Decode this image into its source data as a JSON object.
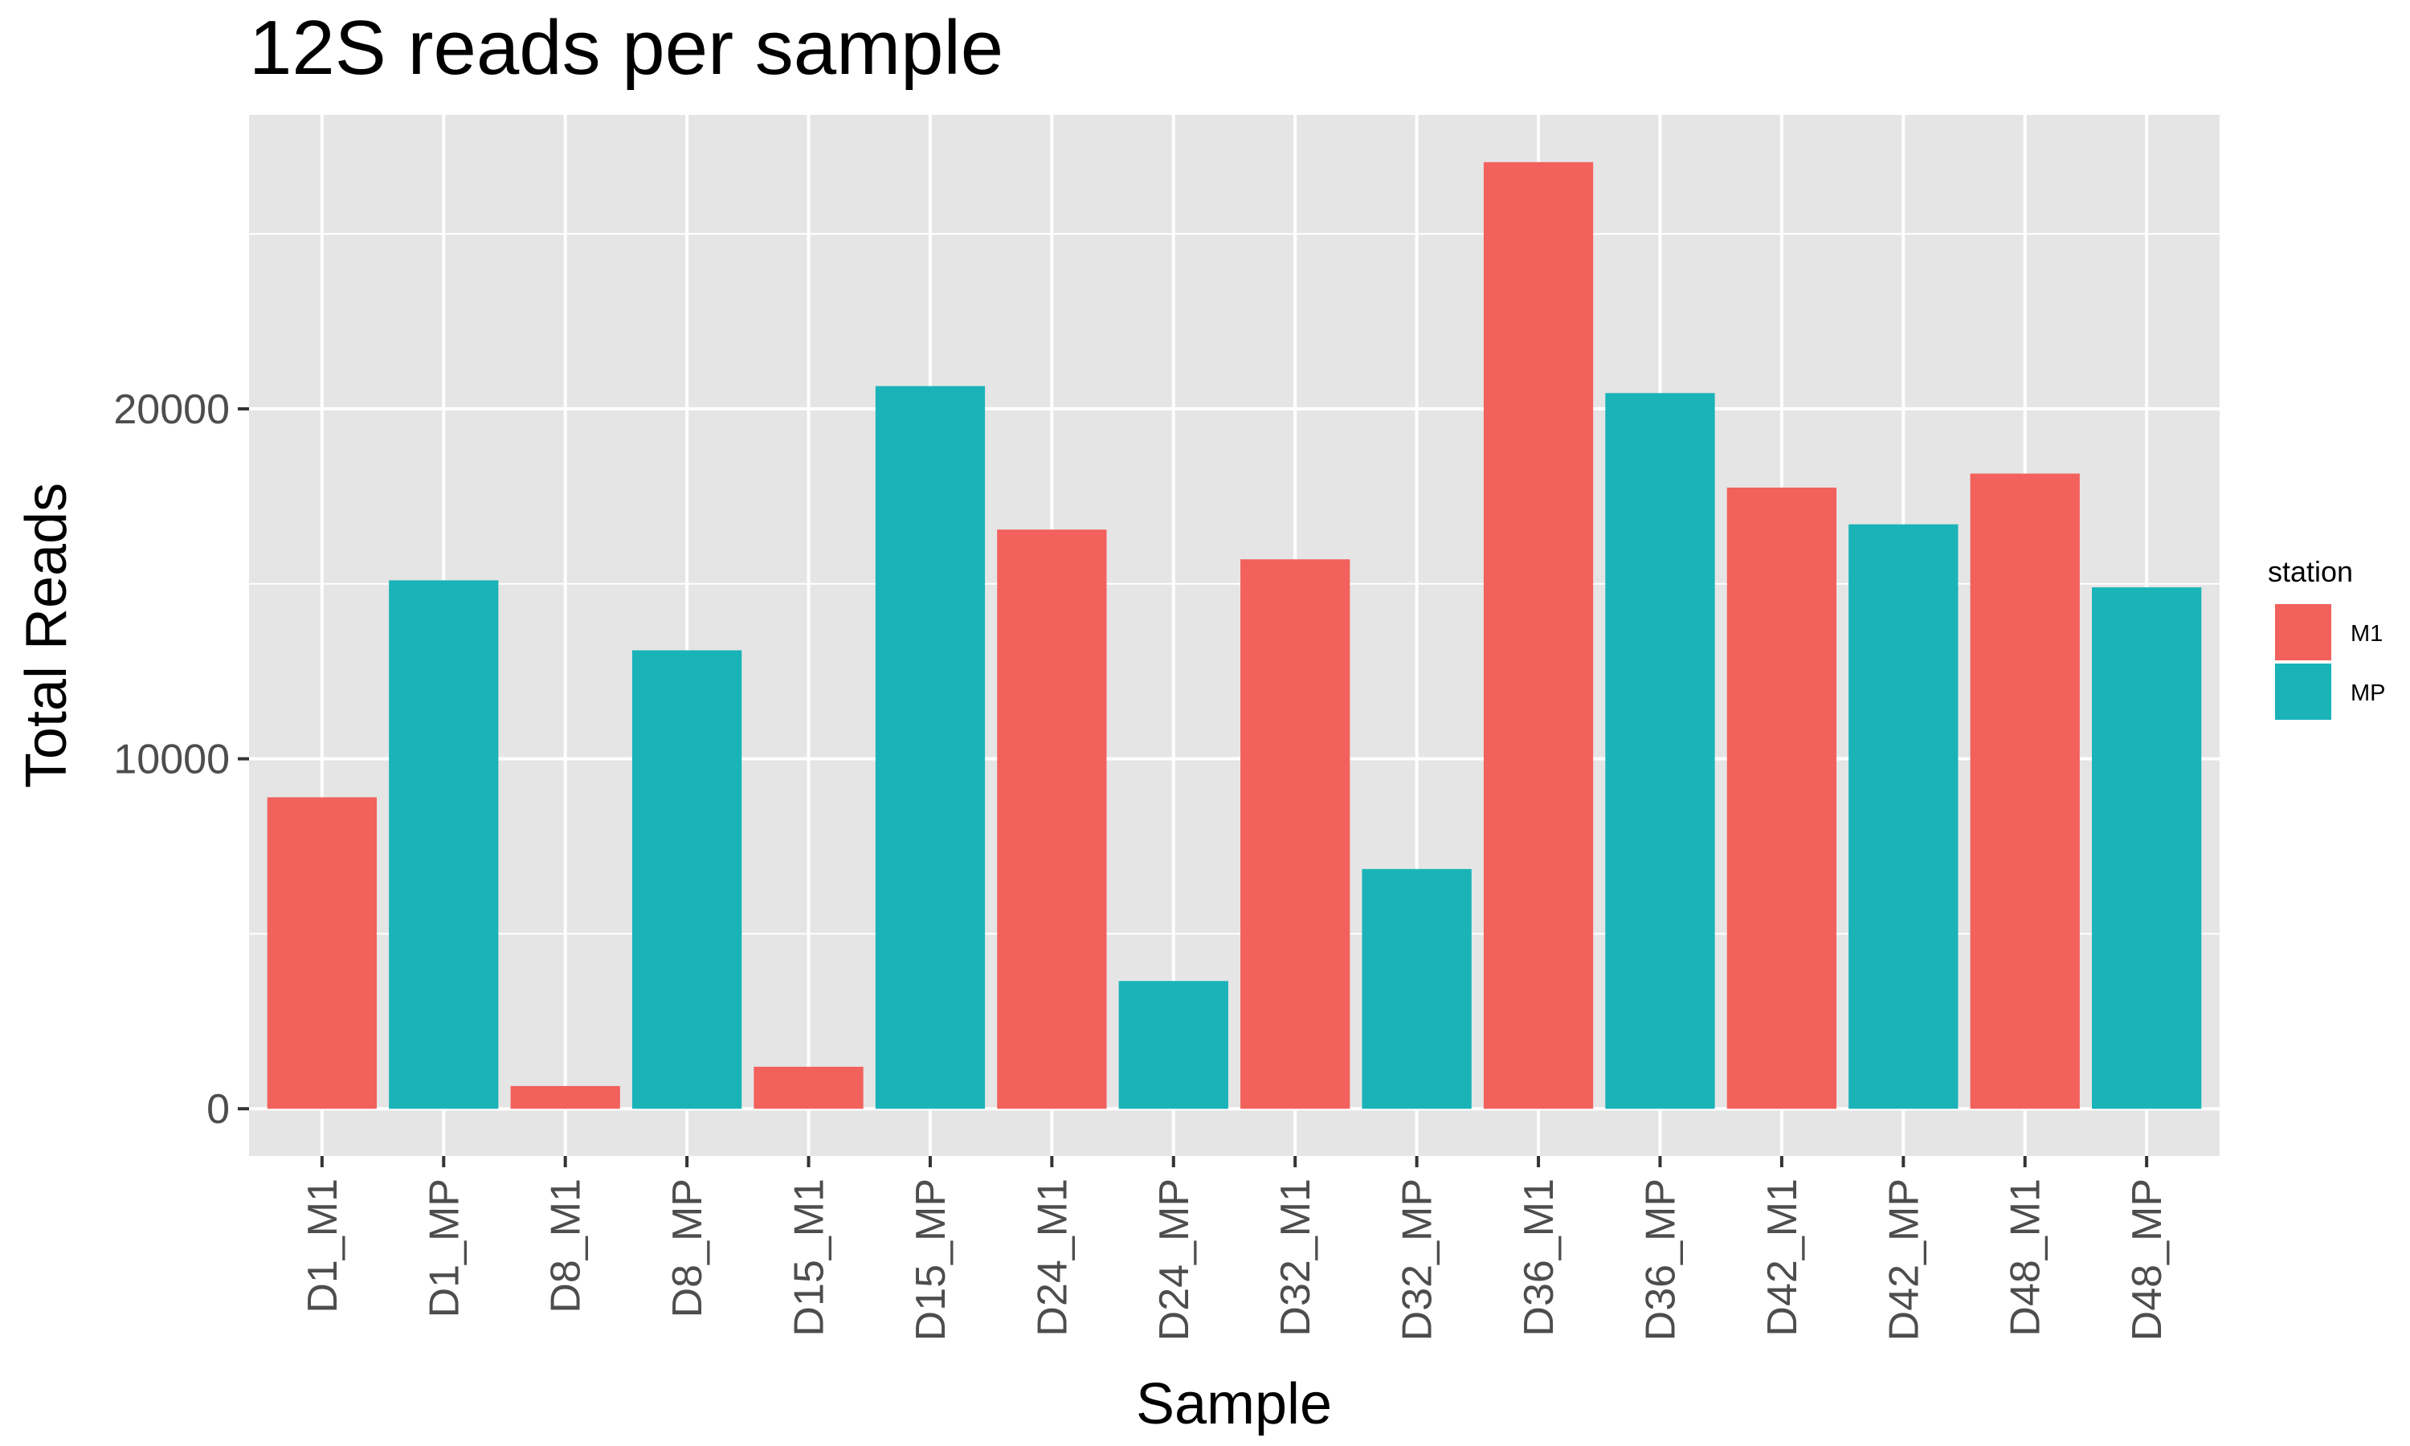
{
  "chart_data": {
    "type": "bar",
    "title": "12S reads per sample",
    "xlabel": "Sample",
    "ylabel": "Total Reads",
    "categories": [
      "D1_M1",
      "D1_MP",
      "D8_M1",
      "D8_MP",
      "D15_M1",
      "D15_MP",
      "D24_M1",
      "D24_MP",
      "D32_M1",
      "D32_MP",
      "D36_M1",
      "D36_MP",
      "D42_M1",
      "D42_MP",
      "D48_M1",
      "D48_MP"
    ],
    "values": [
      8900,
      15100,
      650,
      13100,
      1200,
      20650,
      16550,
      3650,
      15700,
      6850,
      27050,
      20450,
      17750,
      16700,
      18150,
      14900
    ],
    "station": [
      "M1",
      "MP",
      "M1",
      "MP",
      "M1",
      "MP",
      "M1",
      "MP",
      "M1",
      "MP",
      "M1",
      "MP",
      "M1",
      "MP",
      "M1",
      "MP"
    ],
    "ylim": [
      -1350,
      28400
    ],
    "yticks": [
      0,
      10000,
      20000
    ],
    "ytick_labels": [
      "0",
      "10000",
      "20000"
    ],
    "grid": true,
    "legend": {
      "title": "station",
      "position": "right",
      "entries": [
        {
          "label": "M1",
          "color": "#F2615C"
        },
        {
          "label": "MP",
          "color": "#19B3B8"
        }
      ]
    },
    "panel_background": "#E5E5E5",
    "grid_color": "#FFFFFF"
  }
}
